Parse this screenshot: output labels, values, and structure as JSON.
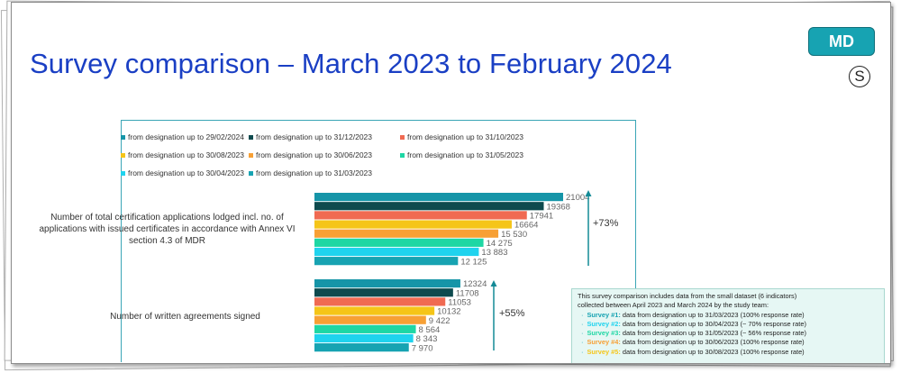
{
  "slide": {
    "title": "Survey comparison – March 2023 to February 2024",
    "badge": "MD",
    "s_icon": "S"
  },
  "legend": [
    {
      "label": "from designation up to 29/02/2024",
      "color": "#1695a8"
    },
    {
      "label": "from designation up to 31/12/2023",
      "color": "#0e4a4e"
    },
    {
      "label": "from designation up to 31/10/2023",
      "color": "#f06a52"
    },
    {
      "label": "from designation up to 30/08/2023",
      "color": "#f5c518"
    },
    {
      "label": "from designation up to 30/06/2023",
      "color": "#f7a035"
    },
    {
      "label": "from designation up to 31/05/2023",
      "color": "#1ed7a4"
    },
    {
      "label": "from designation up to 30/04/2023",
      "color": "#1fd3ee"
    },
    {
      "label": "from designation up to 31/03/2023",
      "color": "#17a3b2"
    }
  ],
  "chart_data": {
    "type": "bar",
    "orientation": "horizontal",
    "categories": [
      "Number of total certification applications lodged incl. no. of applications with issued certificates  in accordance with Annex VI section 4.3 of MDR",
      "Number of written agreements signed"
    ],
    "series": [
      {
        "name": "from designation up to 29/02/2024",
        "values": [
          21004,
          12324
        ],
        "labels": [
          "21004",
          "12324"
        ]
      },
      {
        "name": "from designation up to 31/12/2023",
        "values": [
          19368,
          11708
        ],
        "labels": [
          "19368",
          "11708"
        ]
      },
      {
        "name": "from designation up to 31/10/2023",
        "values": [
          17941,
          11053
        ],
        "labels": [
          "17941",
          "11053"
        ]
      },
      {
        "name": "from designation up to 30/08/2023",
        "values": [
          16664,
          10132
        ],
        "labels": [
          "16664",
          "10132"
        ]
      },
      {
        "name": "from designation up to 30/06/2023",
        "values": [
          15530,
          9422
        ],
        "labels": [
          "15 530",
          "9 422"
        ]
      },
      {
        "name": "from designation up to 31/05/2023",
        "values": [
          14275,
          8564
        ],
        "labels": [
          "14 275",
          "8 564"
        ]
      },
      {
        "name": "from designation up to 30/04/2023",
        "values": [
          13883,
          8343
        ],
        "labels": [
          "13 883",
          "8 343"
        ]
      },
      {
        "name": "from designation up to 31/03/2023",
        "values": [
          12125,
          7970
        ],
        "labels": [
          "12 125",
          "7 970"
        ]
      }
    ],
    "annotations": [
      "+73%",
      "+55%"
    ],
    "xlim": [
      0,
      24000
    ],
    "grid": false,
    "legend_position": "top"
  },
  "note": {
    "intro1": "This survey comparison includes data from the small dataset (6 indicators)",
    "intro2": "collected between April 2023 and March 2024 by the study team:",
    "items": [
      {
        "name": "Survey #1:",
        "text": " data from designation up to 31/03/2023 (100% response rate)",
        "color": "#17a3b2"
      },
      {
        "name": "Survey #2:",
        "text": " data from designation up to 30/04/2023 (~ 70% response rate)",
        "color": "#1fd3ee"
      },
      {
        "name": "Survey #3:",
        "text": " data from designation up to 31/05/2023 (~ 56% response rate)",
        "color": "#1ed7a4"
      },
      {
        "name": "Survey #4:",
        "text": " data from designation up to 30/06/2023 (100% response rate)",
        "color": "#f7a035"
      },
      {
        "name": "Survey #5:",
        "text": " data from designation up to 30/08/2023 (100% response rate)",
        "color": "#f5c518"
      }
    ]
  }
}
